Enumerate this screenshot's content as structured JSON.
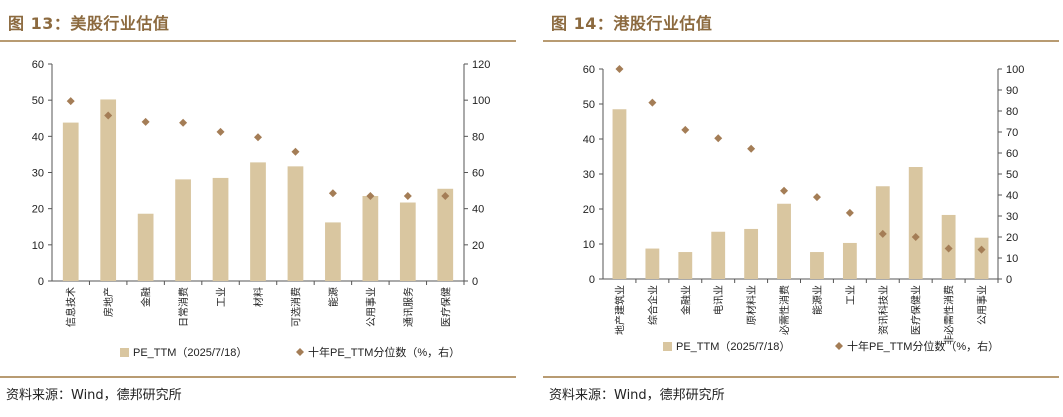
{
  "figures": [
    {
      "title": "图 13：美股行业估值",
      "source": "资料来源：Wind，德邦研究所",
      "chart_data": {
        "type": "bar",
        "categories": [
          "信息技术",
          "房地产",
          "金融",
          "日常消费",
          "工业",
          "材料",
          "可选消费",
          "能源",
          "公用事业",
          "通讯服务",
          "医疗保健"
        ],
        "series": [
          {
            "name": "PE_TTM（2025/7/18）",
            "type": "bar",
            "axis": "left",
            "values": [
              43.8,
              50.2,
              18.6,
              28.1,
              28.5,
              32.8,
              31.7,
              16.2,
              23.5,
              21.7,
              25.5
            ]
          },
          {
            "name": "十年PE_TTM分位数（%，右）",
            "type": "scatter",
            "axis": "right",
            "values": [
              99.5,
              91.5,
              88.0,
              87.5,
              82.5,
              79.5,
              71.5,
              48.5,
              47.0,
              47.0,
              47.0
            ]
          }
        ],
        "ylim_left": [
          0,
          60
        ],
        "yticks_left": [
          0,
          10,
          20,
          30,
          40,
          50,
          60
        ],
        "ylim_right": [
          0,
          120
        ],
        "yticks_right": [
          0,
          20,
          40,
          60,
          80,
          100,
          120
        ],
        "legend_position": "bottom",
        "colors": {
          "bar": "#d9c6a0",
          "marker": "#a47d56"
        }
      }
    },
    {
      "title": "图 14：港股行业估值",
      "source": "资料来源：Wind，德邦研究所",
      "chart_data": {
        "type": "bar",
        "categories": [
          "地产建筑业",
          "综合企业",
          "金融业",
          "电讯业",
          "原材料业",
          "必需性消费",
          "能源业",
          "工业",
          "资讯科技业",
          "医疗保健业",
          "非必需性消费",
          "公用事业"
        ],
        "series": [
          {
            "name": "PE_TTM（2025/7/18）",
            "type": "bar",
            "axis": "left",
            "values": [
              48.5,
              8.7,
              7.7,
              13.5,
              14.3,
              21.5,
              7.7,
              10.3,
              26.5,
              32.0,
              18.3,
              11.8
            ]
          },
          {
            "name": "十年PE_TTM分位数（%，右）",
            "type": "scatter",
            "axis": "right",
            "values": [
              100,
              84,
              71,
              67,
              62,
              42,
              39,
              31.5,
              21.5,
              20,
              14.5,
              14
            ]
          }
        ],
        "ylim_left": [
          0,
          60
        ],
        "yticks_left": [
          0,
          10,
          20,
          30,
          40,
          50,
          60
        ],
        "ylim_right": [
          0,
          100
        ],
        "yticks_right": [
          0,
          10,
          20,
          30,
          40,
          50,
          60,
          70,
          80,
          90,
          100
        ],
        "legend_position": "bottom",
        "colors": {
          "bar": "#d9c6a0",
          "marker": "#a47d56"
        }
      }
    }
  ]
}
